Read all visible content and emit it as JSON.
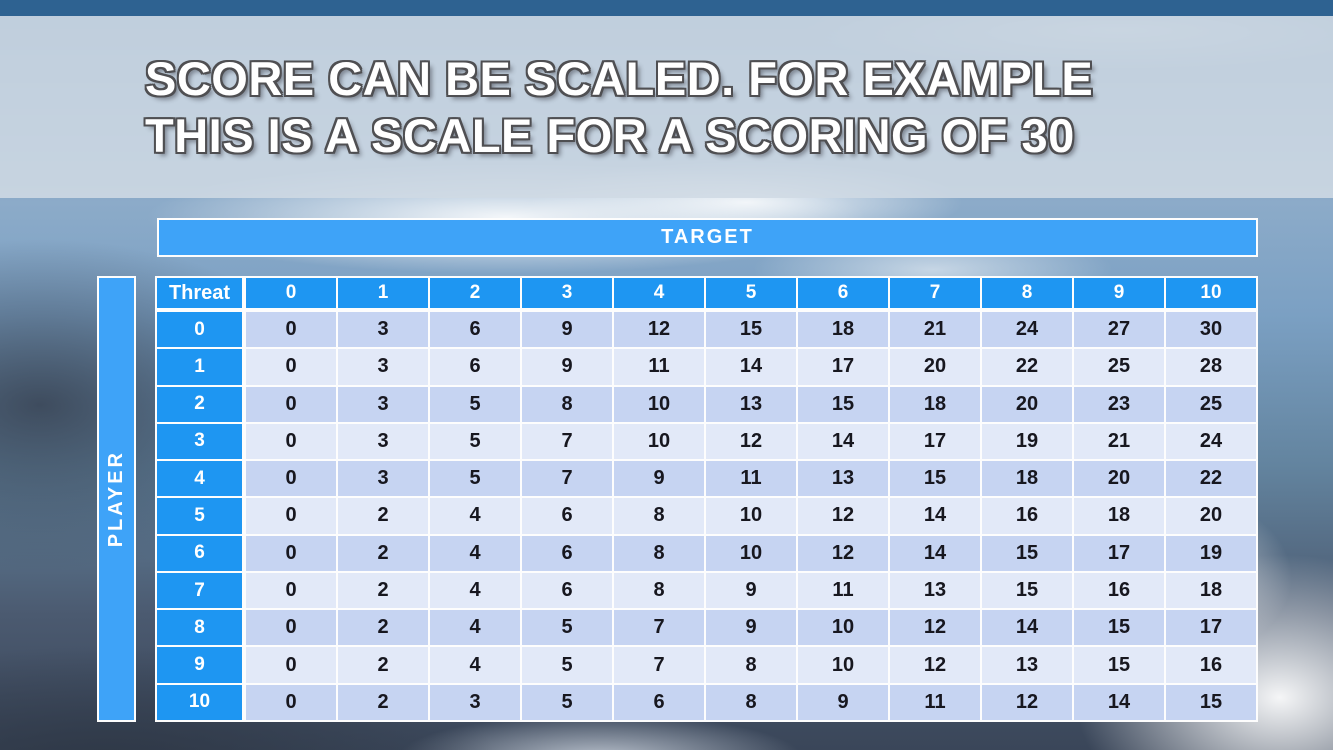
{
  "title": {
    "line1": "SCORE CAN BE SCALED. FOR EXAMPLE",
    "line2": "THIS IS A SCALE FOR A SCORING OF 30"
  },
  "matrix": {
    "target_label": "TARGET",
    "player_label": "PLAYER",
    "corner_label": "Threat",
    "column_headers": [
      "0",
      "1",
      "2",
      "3",
      "4",
      "5",
      "6",
      "7",
      "8",
      "9",
      "10"
    ],
    "row_headers": [
      "0",
      "1",
      "2",
      "3",
      "4",
      "5",
      "6",
      "7",
      "8",
      "9",
      "10"
    ],
    "scores": [
      [
        0,
        3,
        6,
        9,
        12,
        15,
        18,
        21,
        24,
        27,
        30
      ],
      [
        0,
        3,
        6,
        9,
        11,
        14,
        17,
        20,
        22,
        25,
        28
      ],
      [
        0,
        3,
        5,
        8,
        10,
        13,
        15,
        18,
        20,
        23,
        25
      ],
      [
        0,
        3,
        5,
        7,
        10,
        12,
        14,
        17,
        19,
        21,
        24
      ],
      [
        0,
        3,
        5,
        7,
        9,
        11,
        13,
        15,
        18,
        20,
        22
      ],
      [
        0,
        2,
        4,
        6,
        8,
        10,
        12,
        14,
        16,
        18,
        20
      ],
      [
        0,
        2,
        4,
        6,
        8,
        10,
        12,
        14,
        15,
        17,
        19
      ],
      [
        0,
        2,
        4,
        6,
        8,
        9,
        11,
        13,
        15,
        16,
        18
      ],
      [
        0,
        2,
        4,
        5,
        7,
        9,
        10,
        12,
        14,
        15,
        17
      ],
      [
        0,
        2,
        4,
        5,
        7,
        8,
        10,
        12,
        13,
        15,
        16
      ],
      [
        0,
        2,
        3,
        5,
        6,
        8,
        9,
        11,
        12,
        14,
        15
      ]
    ]
  },
  "colors": {
    "header_blue": "#1E96F2",
    "banner_blue": "#3EA3F8",
    "row_even": "#C6D4F2",
    "row_odd": "#E2E9F8",
    "top_bar": "#2E6291",
    "cell_text": "#17171F"
  }
}
